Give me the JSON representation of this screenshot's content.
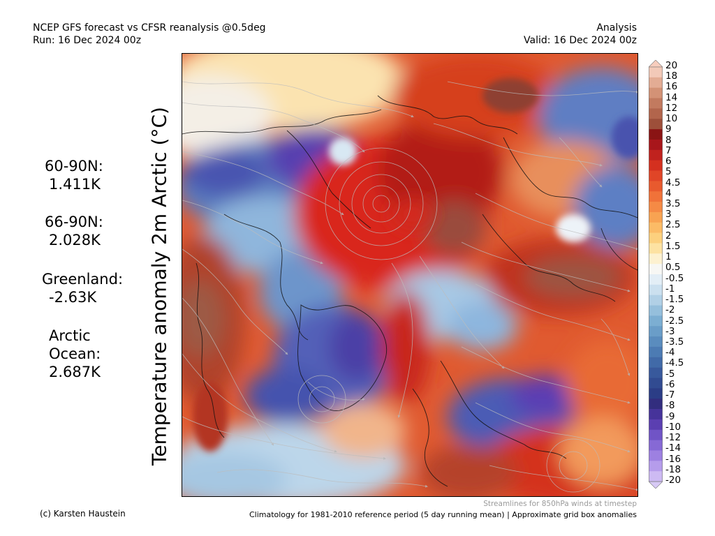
{
  "header": {
    "title": "NCEP GFS forecast vs CFSR reanalysis @0.5deg",
    "run": "Run: 16 Dec 2024 00z",
    "mode": "Analysis",
    "valid": "Valid: 16 Dec 2024 00z"
  },
  "axis_label": "Temperature anomaly 2m Arctic (°C)",
  "stats": [
    {
      "label": "60-90N:",
      "value": "1.411K"
    },
    {
      "label": "66-90N:",
      "value": "2.028K"
    },
    {
      "label": "Greenland:",
      "value": "-2.63K"
    },
    {
      "label_line1": "Arctic",
      "label_line2": "Ocean:",
      "value": "2.687K"
    }
  ],
  "colorbar": {
    "labels": [
      "20",
      "18",
      "16",
      "14",
      "12",
      "10",
      "9",
      "8",
      "7",
      "6",
      "5",
      "4.5",
      "4",
      "3.5",
      "3",
      "2.5",
      "2",
      "1.5",
      "1",
      "0.5",
      "-0.5",
      "-1",
      "-1.5",
      "-2",
      "-2.5",
      "-3",
      "-3.5",
      "-4",
      "-4.5",
      "-5",
      "-6",
      "-7",
      "-8",
      "-9",
      "-10",
      "-12",
      "-14",
      "-16",
      "-18",
      "-20"
    ],
    "colors": [
      "#f2c9b8",
      "#e3ac94",
      "#d39276",
      "#c27a5f",
      "#b2654c",
      "#9d4f3a",
      "#8a1414",
      "#a8161b",
      "#c0221e",
      "#d4301f",
      "#e04527",
      "#e85a2e",
      "#f07239",
      "#f58a45",
      "#f8a352",
      "#fbbb66",
      "#fcd07e",
      "#fde2a2",
      "#fdf1d0",
      "#f7f7f4",
      "#e3eef6",
      "#cbe0ef",
      "#b1d0e6",
      "#95bfdc",
      "#7caed2",
      "#6a9dc8",
      "#5a8cbe",
      "#4c7bb3",
      "#416aa8",
      "#38599c",
      "#314b91",
      "#2b3d86",
      "#322d7e",
      "#46339a",
      "#5b3fb1",
      "#7054c6",
      "#8669d5",
      "#9d80e1",
      "#b59ceb",
      "#cdbaf3"
    ],
    "top_cap": "#f7cdbd",
    "bottom_cap": "#d7c9f5"
  },
  "footer": {
    "credit": "(c) Karsten Haustein",
    "streamline_note": "Streamlines for 850hPa winds at timestep",
    "climatology": "Climatology for 1981-2010 reference period (5 day running mean) | Approximate grid box anomalies"
  }
}
